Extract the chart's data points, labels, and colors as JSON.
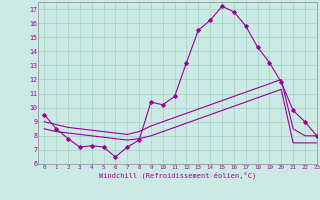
{
  "bg_color": "#cceae4",
  "line_color": "#990099",
  "grid_color": "#aad4cc",
  "xlabel": "Windchill (Refroidissement éolien,°C)",
  "ylim": [
    6,
    17.5
  ],
  "xlim": [
    -0.5,
    23
  ],
  "yticks": [
    6,
    7,
    8,
    9,
    10,
    11,
    12,
    13,
    14,
    15,
    16,
    17
  ],
  "xticks": [
    0,
    1,
    2,
    3,
    4,
    5,
    6,
    7,
    8,
    9,
    10,
    11,
    12,
    13,
    14,
    15,
    16,
    17,
    18,
    19,
    20,
    21,
    22,
    23
  ],
  "series1_x": [
    0,
    1,
    2,
    3,
    4,
    5,
    6,
    7,
    8,
    9,
    10,
    11,
    12,
    13,
    14,
    15,
    16,
    17,
    18,
    19,
    20,
    21,
    22,
    23
  ],
  "series1_y": [
    9.5,
    8.5,
    7.8,
    7.2,
    7.3,
    7.2,
    6.5,
    7.2,
    7.7,
    10.4,
    10.2,
    10.8,
    13.2,
    15.5,
    16.2,
    17.2,
    16.8,
    15.8,
    14.3,
    13.2,
    11.8,
    9.8,
    9.0,
    8.0
  ],
  "series2_x": [
    0,
    1,
    2,
    3,
    4,
    5,
    6,
    7,
    8,
    9,
    10,
    11,
    12,
    13,
    14,
    15,
    16,
    17,
    18,
    19,
    20,
    21,
    22,
    23
  ],
  "series2_y": [
    8.5,
    8.3,
    8.2,
    8.1,
    8.0,
    7.9,
    7.8,
    7.7,
    7.8,
    8.0,
    8.3,
    8.6,
    8.9,
    9.2,
    9.5,
    9.8,
    10.1,
    10.4,
    10.7,
    11.0,
    11.3,
    7.5,
    7.5,
    7.5
  ],
  "series3_x": [
    0,
    1,
    2,
    3,
    4,
    5,
    6,
    7,
    8,
    9,
    10,
    11,
    12,
    13,
    14,
    15,
    16,
    17,
    18,
    19,
    20,
    21,
    22,
    23
  ],
  "series3_y": [
    9.0,
    8.8,
    8.6,
    8.5,
    8.4,
    8.3,
    8.2,
    8.1,
    8.3,
    8.7,
    9.0,
    9.3,
    9.6,
    9.9,
    10.2,
    10.5,
    10.8,
    11.1,
    11.4,
    11.7,
    12.0,
    8.5,
    8.0,
    8.0
  ]
}
